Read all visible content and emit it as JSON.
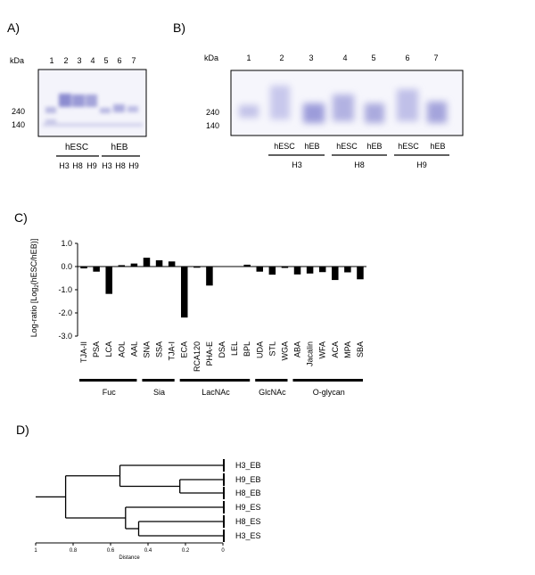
{
  "panel_a": {
    "label": "A)",
    "kda_label": "kDa",
    "lane_numbers": [
      "1",
      "2",
      "3",
      "4",
      "5",
      "6",
      "7"
    ],
    "markers": [
      "240",
      "140"
    ],
    "group_labels": [
      "hESC",
      "hEB"
    ],
    "cell_lines": [
      "H3",
      "H8",
      "H9",
      "H3",
      "H8",
      "H9"
    ]
  },
  "panel_b": {
    "label": "B)",
    "kda_label": "kDa",
    "lane_numbers": [
      "1",
      "2",
      "3",
      "4",
      "5",
      "6",
      "7"
    ],
    "markers": [
      "240",
      "140"
    ],
    "pair_labels": [
      "hESC",
      "hEB",
      "hESC",
      "hEB",
      "hESC",
      "hEB"
    ],
    "cell_lines": [
      "H3",
      "H8",
      "H9"
    ]
  },
  "panel_c": {
    "label": "C)",
    "ylabel_pre": "Log-ratio [Log",
    "ylabel_sub": "2",
    "ylabel_post": "(hESC/hEB)]",
    "groups": [
      {
        "name": "Fuc",
        "start": 0,
        "end": 4
      },
      {
        "name": "Sia",
        "start": 5,
        "end": 7
      },
      {
        "name": "LacNAc",
        "start": 8,
        "end": 13
      },
      {
        "name": "GlcNAc",
        "start": 14,
        "end": 16
      },
      {
        "name": "O-glycan",
        "start": 17,
        "end": 22
      }
    ]
  },
  "chart_data": [
    {
      "type": "bar",
      "title": "",
      "xlabel": "",
      "ylabel": "Log-ratio [Log2(hESC/hEB)]",
      "ylim": [
        -3.0,
        1.0
      ],
      "yticks": [
        "1.0",
        "0.0",
        "-1.0",
        "-2.0",
        "-3.0"
      ],
      "categories": [
        "TJA-II",
        "PSA",
        "LCA",
        "AOL",
        "AAL",
        "SNA",
        "SSA",
        "TJA-I",
        "ECA",
        "RCA120",
        "PHA-E",
        "DSA",
        "LEL",
        "BPL",
        "UDA",
        "STL",
        "WGA",
        "ABA",
        "Jacalin",
        "WFA",
        "ACA",
        "MPA",
        "SBA"
      ],
      "values": [
        -0.08,
        -0.22,
        -1.18,
        0.06,
        0.13,
        0.38,
        0.27,
        0.22,
        -2.2,
        -0.05,
        -0.82,
        0.0,
        0.0,
        0.08,
        -0.22,
        -0.35,
        -0.06,
        -0.34,
        -0.3,
        -0.24,
        -0.58,
        -0.25,
        -0.55
      ],
      "grid": false
    },
    {
      "type": "dendrogram",
      "title": "",
      "xlabel": "Distance",
      "xlim": [
        1,
        0
      ],
      "xticks": [
        "1",
        "0.8",
        "0.6",
        "0.4",
        "0.2",
        "0"
      ],
      "leaves": [
        "H3_EB",
        "H9_EB",
        "H8_EB",
        "H9_ES",
        "H8_ES",
        "H3_ES"
      ],
      "merges": [
        {
          "items": [
            "H9_EB",
            "H8_EB"
          ],
          "distance": 0.23
        },
        {
          "items": [
            "H3_EB",
            "(H9_EB,H8_EB)"
          ],
          "distance": 0.55
        },
        {
          "items": [
            "H8_ES",
            "H3_ES"
          ],
          "distance": 0.45
        },
        {
          "items": [
            "H9_ES",
            "(H8_ES,H3_ES)"
          ],
          "distance": 0.52
        },
        {
          "items": [
            "EB",
            "ES"
          ],
          "distance": 0.84
        }
      ]
    }
  ],
  "panel_d": {
    "label": "D)"
  }
}
